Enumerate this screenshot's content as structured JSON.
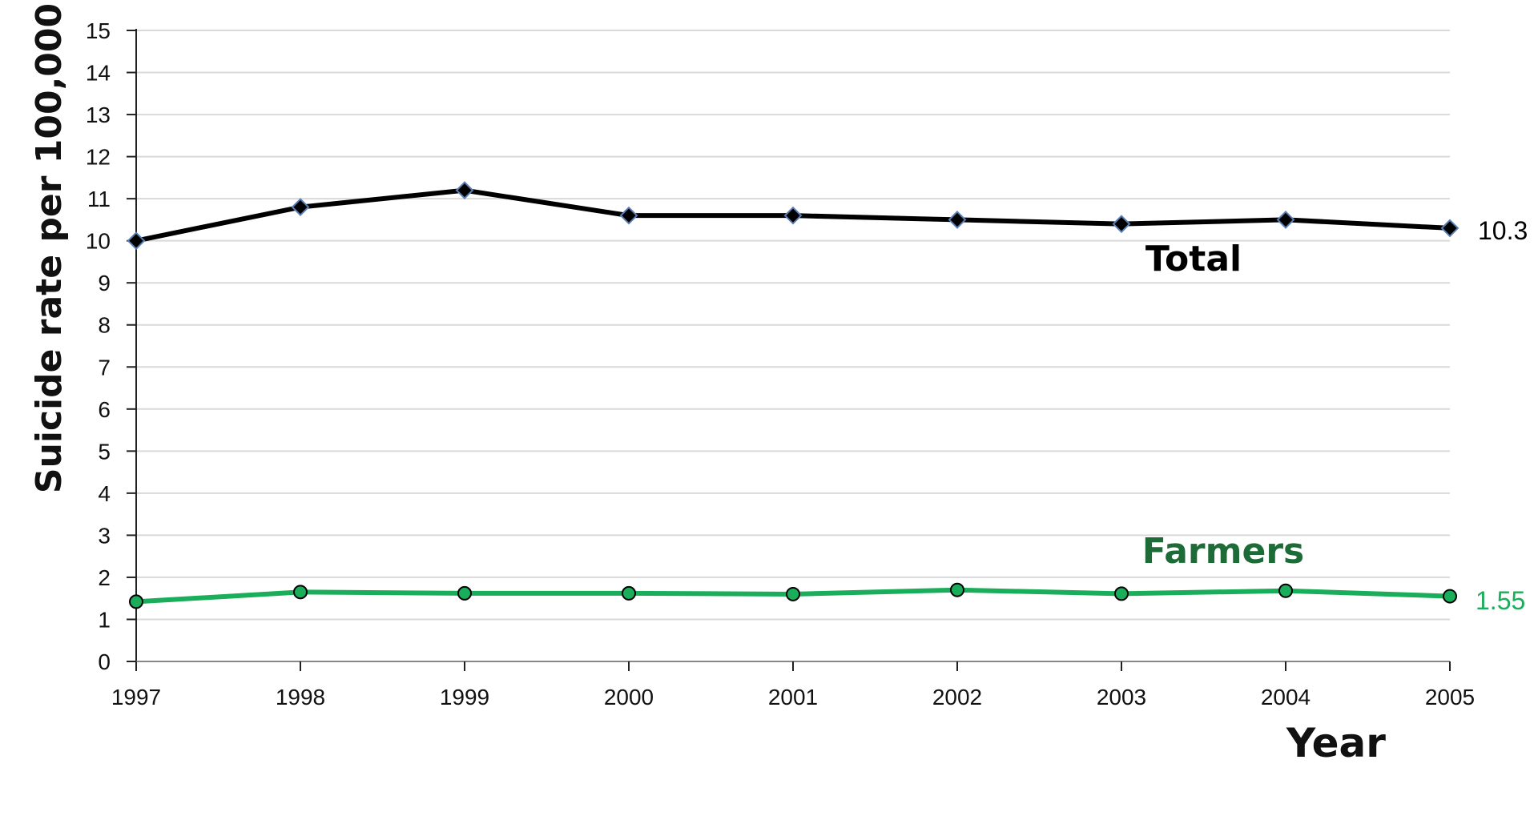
{
  "chart_data": {
    "type": "line",
    "title": "",
    "xlabel": "Year",
    "ylabel": "Suicide rate per 100,000",
    "categories": [
      "1997",
      "1998",
      "1999",
      "2000",
      "2001",
      "2002",
      "2003",
      "2004",
      "2005"
    ],
    "yticks": [
      "0",
      "1",
      "2",
      "3",
      "4",
      "5",
      "6",
      "7",
      "8",
      "9",
      "10",
      "11",
      "12",
      "13",
      "14",
      "15"
    ],
    "ylim": [
      0,
      15
    ],
    "grid": true,
    "legend": "none",
    "series": [
      {
        "name": "Total",
        "marker": "diamond",
        "color": "#000000",
        "values": [
          10.0,
          10.8,
          11.2,
          10.6,
          10.6,
          10.5,
          10.4,
          10.5,
          10.3
        ],
        "end_label": "10.3"
      },
      {
        "name": "Farmers",
        "marker": "circle",
        "color": "#1aad5a",
        "label_color": "#1d6b36",
        "values": [
          1.42,
          1.65,
          1.62,
          1.62,
          1.6,
          1.7,
          1.61,
          1.68,
          1.55
        ],
        "end_label": "1.55"
      }
    ]
  }
}
